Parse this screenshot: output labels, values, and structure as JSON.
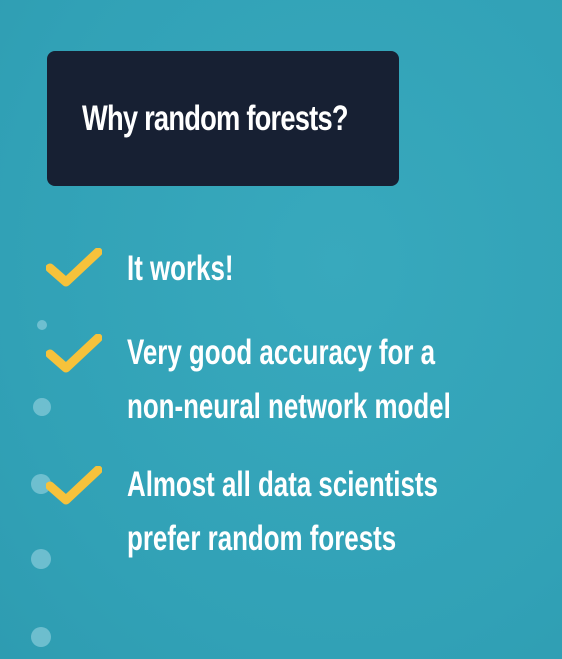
{
  "title": "Why random forests?",
  "colors": {
    "background": "#33a4b9",
    "title_box": "#172033",
    "check": "#f6c23b",
    "text": "#ffffff"
  },
  "items": [
    {
      "icon": "checkmark-icon",
      "lines": [
        "It works!"
      ]
    },
    {
      "icon": "checkmark-icon",
      "lines": [
        "Very good accuracy for a",
        "non-neural network model"
      ]
    },
    {
      "icon": "checkmark-icon",
      "lines": [
        "Almost all data scientists",
        "prefer random forests"
      ]
    }
  ]
}
